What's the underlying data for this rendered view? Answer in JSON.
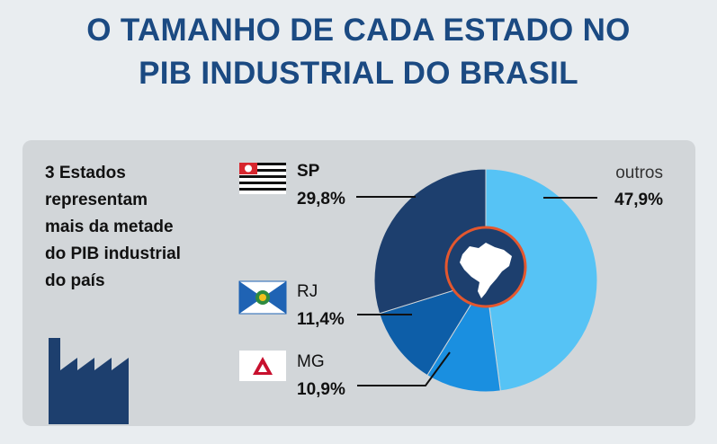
{
  "title": {
    "line1": "O TAMANHO DE CADA ESTADO NO",
    "line2": "PIB INDUSTRIAL DO BRASIL"
  },
  "subtitle": {
    "lines": [
      "3 Estados",
      "representam",
      "mais da metade",
      "do PIB industrial",
      "do país"
    ]
  },
  "colors": {
    "title": "#1b4a82",
    "panel": "#d2d6d9",
    "SP": "#1d3f6e",
    "RJ": "#0d5ea8",
    "MG": "#1a8fe0",
    "outros": "#56c3f5",
    "center_ring": "#e4572e",
    "icon": "#1d3f6e"
  },
  "icons": [
    "sp-flag-icon",
    "rj-flag-icon",
    "mg-flag-icon",
    "factory-icon",
    "brazil-map-icon"
  ],
  "chart_data": {
    "type": "pie",
    "title": "O TAMANHO DE CADA ESTADO NO PIB INDUSTRIAL DO BRASIL",
    "unit": "%",
    "slices": [
      {
        "label": "outros",
        "value": 47.9,
        "display": "47,9%"
      },
      {
        "label": "MG",
        "value": 10.9,
        "display": "10,9%"
      },
      {
        "label": "RJ",
        "value": 11.4,
        "display": "11,4%"
      },
      {
        "label": "SP",
        "value": 29.8,
        "display": "29,8%"
      }
    ]
  }
}
